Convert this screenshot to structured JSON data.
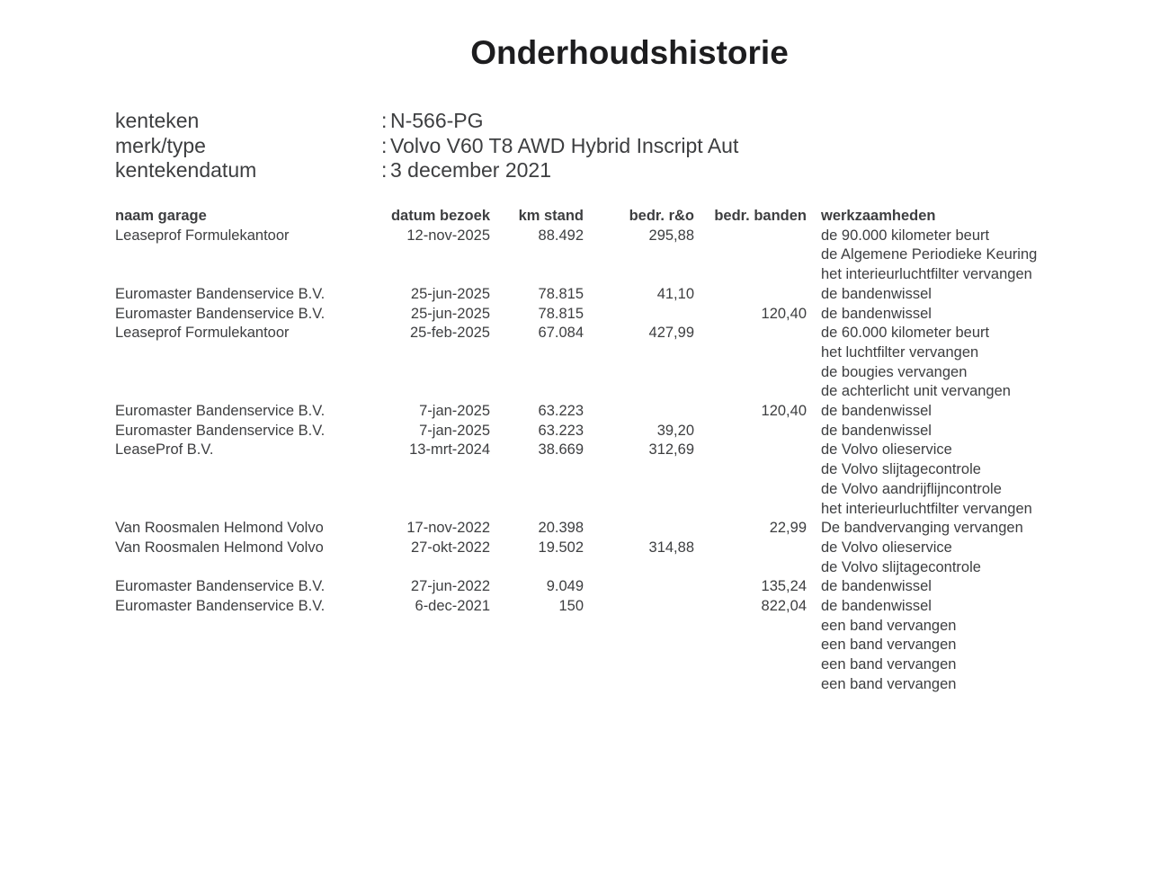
{
  "title": "Onderhoudshistorie",
  "vehicle_info": {
    "separator": ":",
    "rows": [
      {
        "label": "kenteken",
        "value": "N-566-PG"
      },
      {
        "label": "merk/type",
        "value": "Volvo V60 T8 AWD Hybrid Inscript Aut"
      },
      {
        "label": "kentekendatum",
        "value": "3 december 2021"
      }
    ]
  },
  "table": {
    "columns": [
      "naam garage",
      "datum bezoek",
      "km stand",
      "bedr. r&o",
      "bedr. banden",
      "werkzaamheden"
    ],
    "rows": [
      {
        "garage": "Leaseprof Formulekantoor",
        "datum": "12-nov-2025",
        "km": "88.492",
        "ro": "295,88",
        "banden": "",
        "werkzaamheden": [
          "de 90.000 kilometer beurt",
          "de Algemene Periodieke Keuring",
          "het interieurluchtfilter vervangen"
        ]
      },
      {
        "garage": "Euromaster Bandenservice B.V.",
        "datum": "25-jun-2025",
        "km": "78.815",
        "ro": "41,10",
        "banden": "",
        "werkzaamheden": [
          "de bandenwissel"
        ]
      },
      {
        "garage": "Euromaster Bandenservice B.V.",
        "datum": "25-jun-2025",
        "km": "78.815",
        "ro": "",
        "banden": "120,40",
        "werkzaamheden": [
          "de bandenwissel"
        ]
      },
      {
        "garage": "Leaseprof Formulekantoor",
        "datum": "25-feb-2025",
        "km": "67.084",
        "ro": "427,99",
        "banden": "",
        "werkzaamheden": [
          "de 60.000 kilometer beurt",
          "het luchtfilter vervangen",
          "de bougies vervangen",
          "de achterlicht unit vervangen"
        ]
      },
      {
        "garage": "Euromaster Bandenservice B.V.",
        "datum": "7-jan-2025",
        "km": "63.223",
        "ro": "",
        "banden": "120,40",
        "werkzaamheden": [
          "de bandenwissel"
        ]
      },
      {
        "garage": "Euromaster Bandenservice B.V.",
        "datum": "7-jan-2025",
        "km": "63.223",
        "ro": "39,20",
        "banden": "",
        "werkzaamheden": [
          "de bandenwissel"
        ]
      },
      {
        "garage": "LeaseProf B.V.",
        "datum": "13-mrt-2024",
        "km": "38.669",
        "ro": "312,69",
        "banden": "",
        "werkzaamheden": [
          "de Volvo olieservice",
          "de Volvo slijtagecontrole",
          "de Volvo aandrijflijncontrole",
          "het interieurluchtfilter vervangen"
        ]
      },
      {
        "garage": "Van Roosmalen Helmond Volvo",
        "datum": "17-nov-2022",
        "km": "20.398",
        "ro": "",
        "banden": "22,99",
        "werkzaamheden": [
          "De bandvervanging vervangen"
        ]
      },
      {
        "garage": "Van Roosmalen Helmond Volvo",
        "datum": "27-okt-2022",
        "km": "19.502",
        "ro": "314,88",
        "banden": "",
        "werkzaamheden": [
          "de Volvo olieservice",
          "de Volvo slijtagecontrole"
        ]
      },
      {
        "garage": "Euromaster Bandenservice B.V.",
        "datum": "27-jun-2022",
        "km": "9.049",
        "ro": "",
        "banden": "135,24",
        "werkzaamheden": [
          "de bandenwissel"
        ]
      },
      {
        "garage": "Euromaster Bandenservice B.V.",
        "datum": "6-dec-2021",
        "km": "150",
        "ro": "",
        "banden": "822,04",
        "werkzaamheden": [
          "de bandenwissel",
          "een band vervangen",
          "een band vervangen",
          "een band vervangen",
          "een band vervangen"
        ]
      }
    ]
  },
  "colors": {
    "background": "#ffffff",
    "body_text": "#3d3e40",
    "title_text": "#1d1d1f"
  }
}
